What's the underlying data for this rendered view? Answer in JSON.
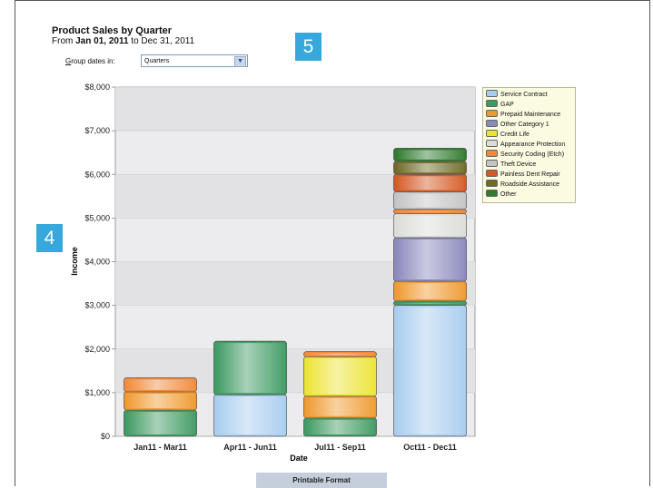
{
  "report": {
    "title": "Product Sales by Quarter",
    "range_prefix": "From",
    "range_start": "Jan 01, 2011",
    "range_mid": "to",
    "range_end": "Dec 31, 2011"
  },
  "group_by": {
    "label_first": "G",
    "label_rest": "roup dates in:",
    "value": "Quarters"
  },
  "badges": {
    "five": "5",
    "four": "4"
  },
  "print_button": "Printable Format",
  "colors": {
    "Service Contract": "#a9cdef",
    "GAP": "#3f9a63",
    "Prepaid Maintenance": "#ef9a2f",
    "Other Category 1": "#8b89bd",
    "Credit Life": "#ece434",
    "Appearance Protection": "#dcdcd8",
    "Security Coding (Etch)": "#f28a3a",
    "Theft Device": "#c4c4c4",
    "Painless Dent Repair": "#d45a24",
    "Roadside Assistance": "#6f6a2a",
    "Other": "#2f7a2f"
  },
  "chart_data": {
    "type": "bar",
    "stacked": true,
    "xlabel": "Date",
    "ylabel": "Income",
    "ylim": [
      0,
      8000
    ],
    "yticks": [
      "$0",
      "$1,000",
      "$2,000",
      "$3,000",
      "$4,000",
      "$5,000",
      "$6,000",
      "$7,000",
      "$8,000"
    ],
    "grid": true,
    "legend": "right",
    "categories": [
      "Jan11 - Mar11",
      "Apr11 - Jun11",
      "Jul11 - Sep11",
      "Oct11 - Dec11"
    ],
    "series": [
      {
        "name": "Service Contract",
        "values": [
          0,
          950,
          0,
          3000
        ]
      },
      {
        "name": "GAP",
        "values": [
          600,
          1230,
          420,
          100
        ]
      },
      {
        "name": "Prepaid Maintenance",
        "values": [
          420,
          0,
          500,
          450
        ]
      },
      {
        "name": "Other Category 1",
        "values": [
          0,
          0,
          0,
          1000
        ]
      },
      {
        "name": "Credit Life",
        "values": [
          0,
          0,
          900,
          0
        ]
      },
      {
        "name": "Appearance Protection",
        "values": [
          0,
          0,
          0,
          550
        ]
      },
      {
        "name": "Security Coding (Etch)",
        "values": [
          320,
          0,
          120,
          100
        ]
      },
      {
        "name": "Theft Device",
        "values": [
          0,
          0,
          0,
          400
        ]
      },
      {
        "name": "Painless Dent Repair",
        "values": [
          0,
          0,
          0,
          400
        ]
      },
      {
        "name": "Roadside Assistance",
        "values": [
          0,
          0,
          0,
          300
        ]
      },
      {
        "name": "Other",
        "values": [
          0,
          0,
          0,
          300
        ]
      }
    ]
  }
}
